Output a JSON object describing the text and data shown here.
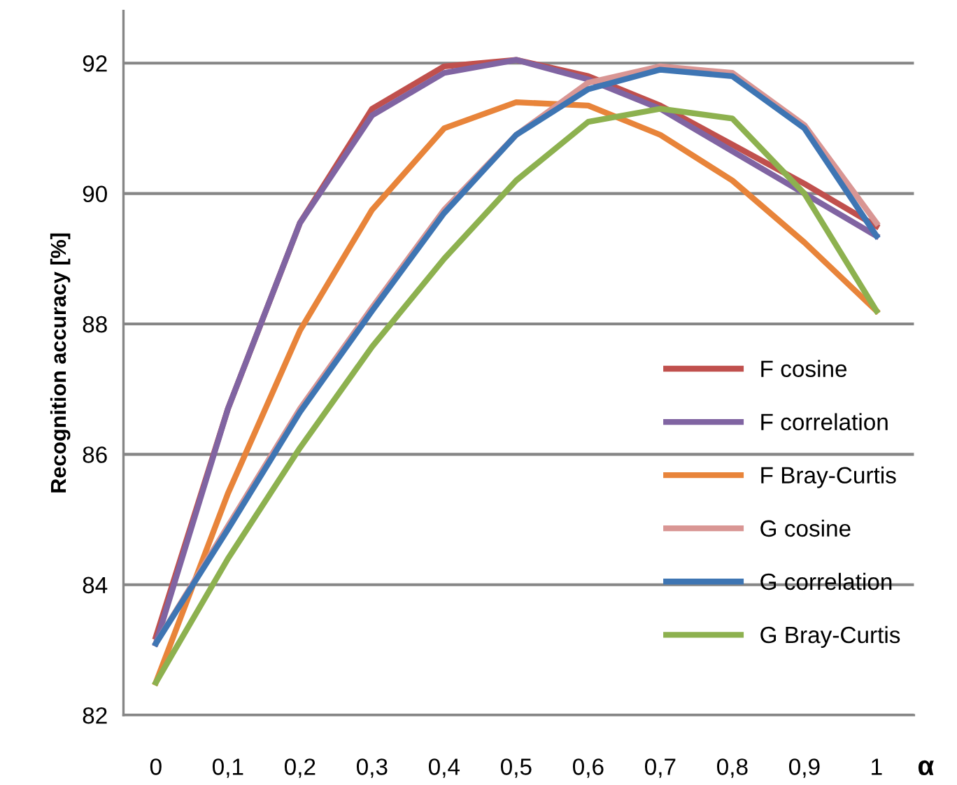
{
  "chart_data": {
    "type": "line",
    "xlabel": "α",
    "ylabel": "Recognition accuracy [%]",
    "categories": [
      "0",
      "0,1",
      "0,2",
      "0,3",
      "0,4",
      "0,5",
      "0,6",
      "0,7",
      "0,8",
      "0,9",
      "1"
    ],
    "ylim": [
      82,
      92.8
    ],
    "yticks": [
      82,
      84,
      86,
      88,
      90,
      92
    ],
    "grid": "y",
    "legend": "right",
    "marker": "none",
    "line_style": "solid",
    "series": [
      {
        "name": "F cosine",
        "color": "#c0504d",
        "values": [
          83.2,
          86.7,
          89.55,
          91.3,
          91.95,
          92.05,
          91.8,
          91.35,
          90.75,
          90.15,
          89.5
        ]
      },
      {
        "name": "F correlation",
        "color": "#8064a2",
        "values": [
          83.1,
          86.7,
          89.55,
          91.2,
          91.85,
          92.05,
          91.75,
          91.3,
          90.65,
          90.0,
          89.35
        ]
      },
      {
        "name": "F Bray-Curtis",
        "color": "#e8843a",
        "values": [
          82.5,
          85.4,
          87.9,
          89.75,
          91.0,
          91.4,
          91.35,
          90.9,
          90.2,
          89.25,
          88.2
        ]
      },
      {
        "name": "G cosine",
        "color": "#d99694",
        "values": [
          83.1,
          84.9,
          86.7,
          88.25,
          89.75,
          90.9,
          91.7,
          91.95,
          91.85,
          91.05,
          89.55
        ]
      },
      {
        "name": "G correlation",
        "color": "#3e75b3",
        "values": [
          83.1,
          84.85,
          86.65,
          88.2,
          89.7,
          90.9,
          91.6,
          91.9,
          91.8,
          91.0,
          89.35
        ]
      },
      {
        "name": "G Bray-Curtis",
        "color": "#8db14f",
        "values": [
          82.5,
          84.4,
          86.1,
          87.65,
          89.0,
          90.2,
          91.1,
          91.3,
          91.15,
          90.0,
          88.2
        ]
      }
    ]
  }
}
